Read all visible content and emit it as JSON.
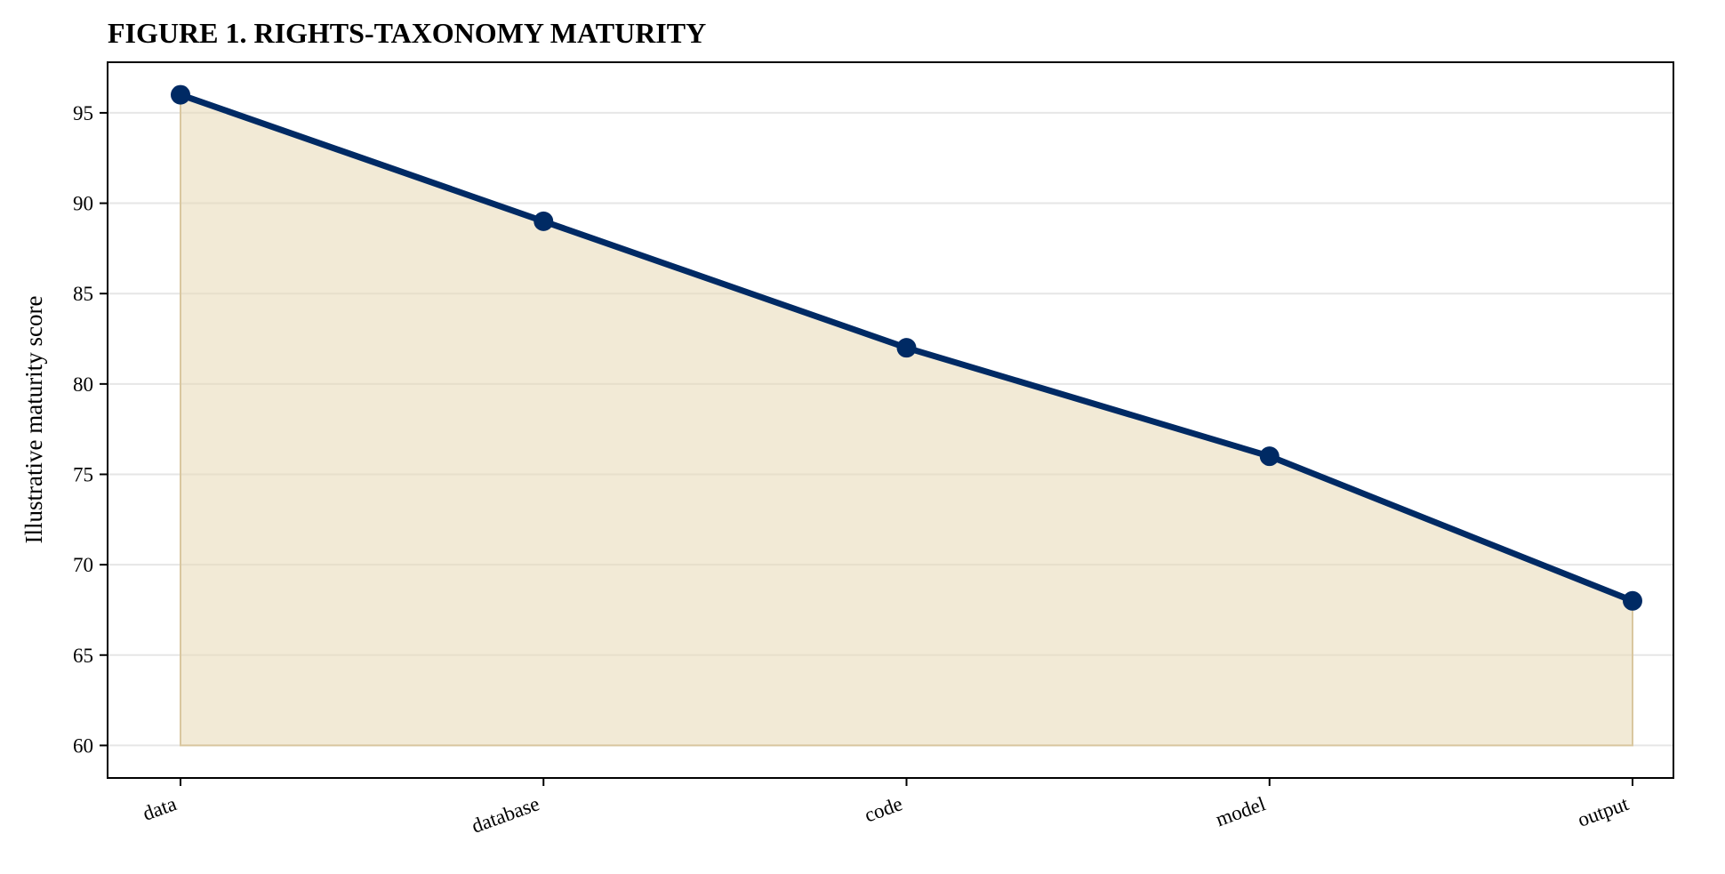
{
  "colors": {
    "line": "#002a64",
    "area_fill": "#e8d9b5",
    "area_stroke": "#d9c7a0",
    "grid": "#e6e6e6"
  },
  "chart_data": {
    "type": "area",
    "title": "FIGURE 1. RIGHTS-TAXONOMY MATURITY",
    "xlabel": "",
    "ylabel": "Illustrative maturity score",
    "categories": [
      "data",
      "database",
      "code",
      "model",
      "output"
    ],
    "series": [
      {
        "values": [
          96,
          89,
          82,
          76,
          68
        ]
      }
    ],
    "area_baseline": 60,
    "ylim": [
      58.2,
      97.8
    ],
    "yticks": [
      60,
      65,
      70,
      75,
      80,
      85,
      90,
      95
    ],
    "x_tick_rotation": "rotated about 20 degrees",
    "grid": "horizontal only",
    "legend": "none"
  }
}
